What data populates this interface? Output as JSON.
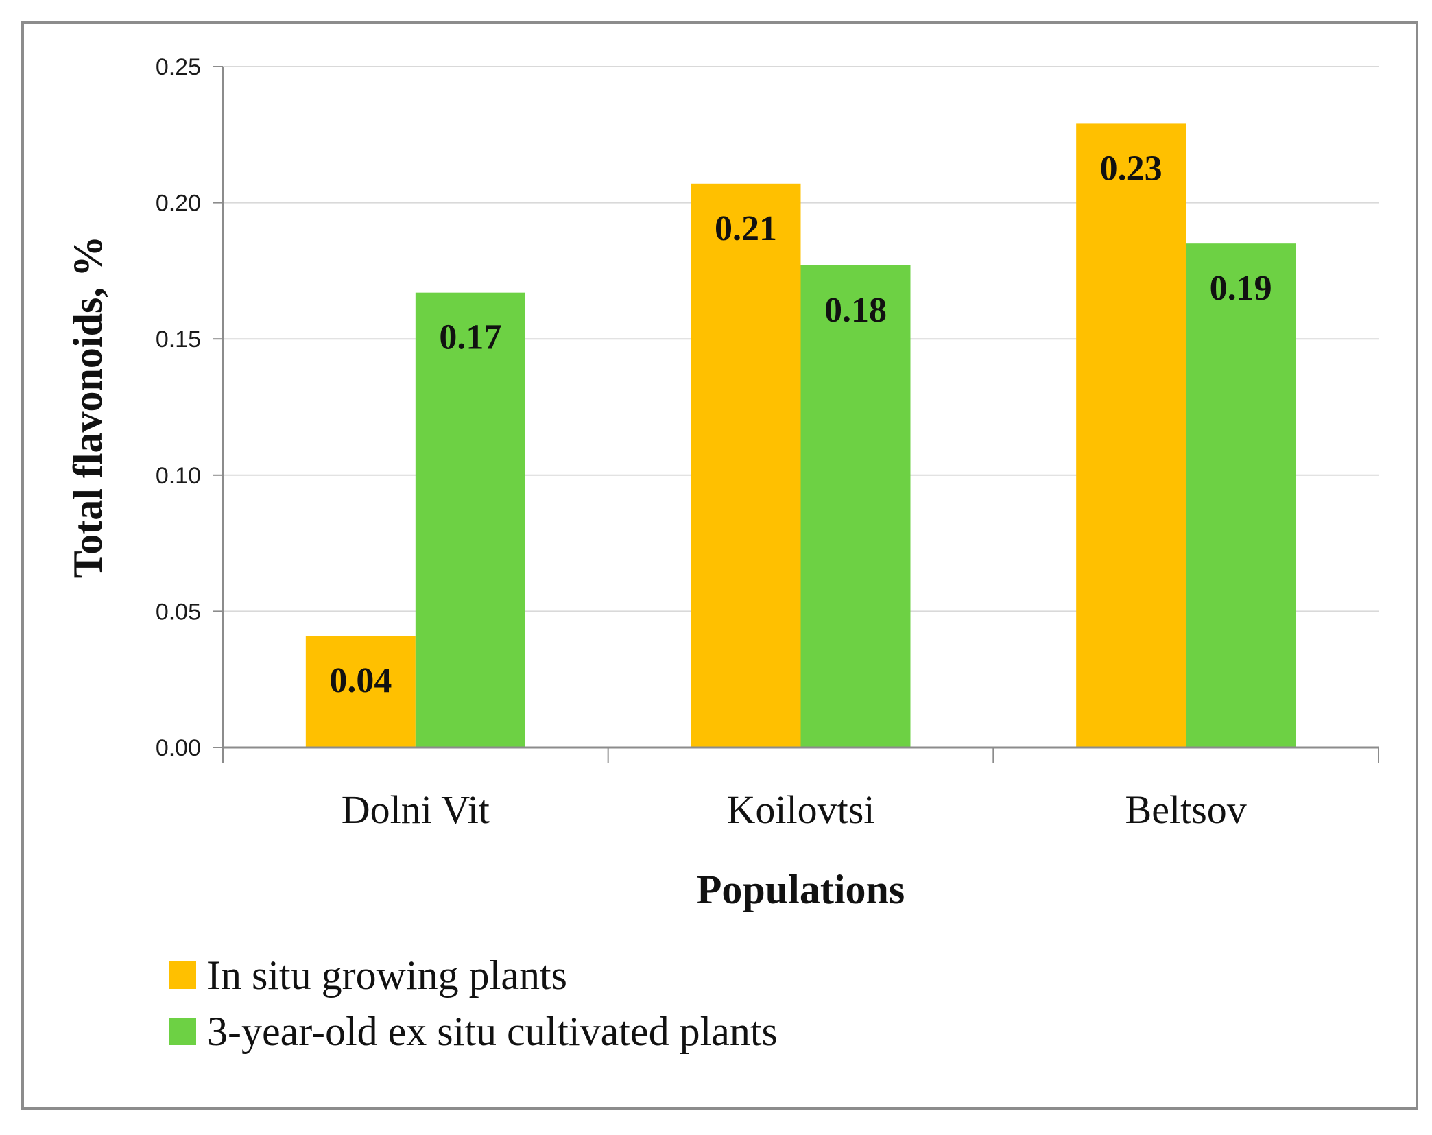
{
  "chart_data": {
    "type": "bar",
    "title": "",
    "xlabel": "Populations",
    "ylabel": "Total flavonoids, %",
    "categories": [
      "Dolni Vit",
      "Koilovtsi",
      "Beltsov"
    ],
    "ylim": [
      0,
      0.25
    ],
    "yticks": [
      "0.00",
      "0.05",
      "0.10",
      "0.15",
      "0.20",
      "0.25"
    ],
    "grid": true,
    "legend_position": "bottom-left",
    "series": [
      {
        "name": "In situ growing plants",
        "color": "#FFC000",
        "values": [
          0.041,
          0.207,
          0.229
        ],
        "labels": [
          "0.04",
          "0.21",
          "0.23"
        ]
      },
      {
        "name": "3-year-old ex situ cultivated plants",
        "color": "#6DD144",
        "values": [
          0.167,
          0.177,
          0.185
        ],
        "labels": [
          "0.17",
          "0.18",
          "0.19"
        ]
      }
    ]
  }
}
